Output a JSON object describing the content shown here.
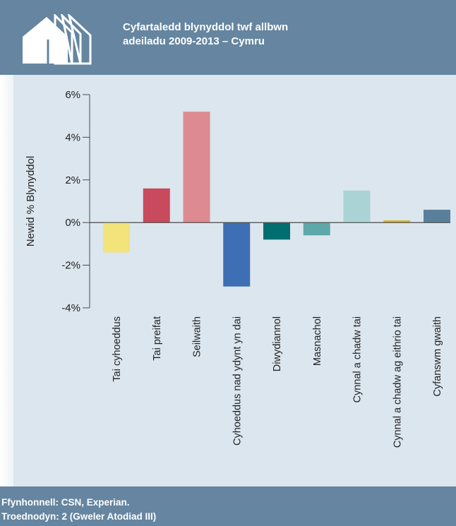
{
  "header": {
    "title_line1": "Cyfartaledd blynyddol twf allbwn",
    "title_line2": "adeiladu 2009-2013 – Cymru",
    "logo_icon": "houses-icon"
  },
  "footer": {
    "source": "Ffynhonnell: CSN, Experian.",
    "footnote": "Troednodyn: 2 (Gweler Atodiad III)"
  },
  "colors": {
    "header_bg": "#6585a0",
    "panel_bg": "#dce6ee"
  },
  "chart_data": {
    "type": "bar",
    "title": "",
    "xlabel": "",
    "ylabel": "Newid % Blynyddol",
    "ylim": [
      -4,
      6
    ],
    "yticks": [
      6,
      4,
      2,
      0,
      -2,
      -4
    ],
    "ytick_labels": [
      "6%",
      "4%",
      "2%",
      "0%",
      "-2%",
      "-4%"
    ],
    "grid": false,
    "categories": [
      "Tai cyhoeddus",
      "Tai preifat",
      "Seilwaith",
      "Cyhoeddus nad ydynt yn dai",
      "Diwydiannol",
      "Masnachol",
      "Cynnal a chadw tai",
      "Cynnal a chadw ag eithrio tai",
      "Cyfanswm gwaith"
    ],
    "values": [
      -1.4,
      1.6,
      5.2,
      -3.0,
      -0.8,
      -0.6,
      1.5,
      0.1,
      0.6
    ],
    "colors": [
      "#f2e37a",
      "#c84a5c",
      "#dd8b90",
      "#3e6fb4",
      "#006e70",
      "#5ea8aa",
      "#a9d3d4",
      "#d4b22a",
      "#5a7f9c"
    ]
  }
}
